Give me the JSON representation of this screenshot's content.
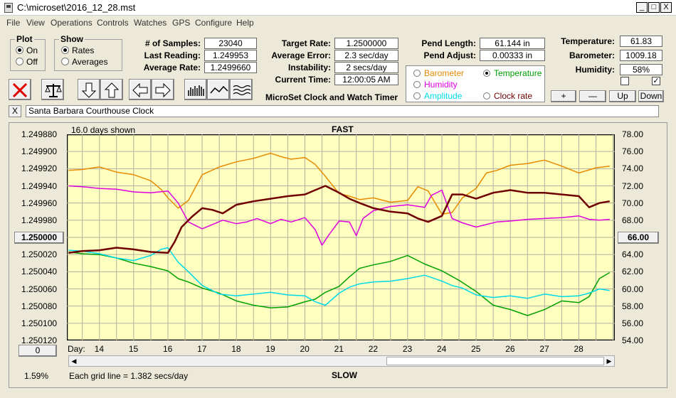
{
  "window": {
    "title": "C:\\microset\\2016_12_28.mst",
    "min": "_",
    "max": "□",
    "close": "X"
  },
  "menu": [
    "File",
    "View",
    "Operations",
    "Controls",
    "Watches",
    "GPS",
    "Configure",
    "Help"
  ],
  "plot": {
    "label": "Plot",
    "on": "On",
    "off": "Off"
  },
  "show": {
    "label": "Show",
    "rates": "Rates",
    "averages": "Averages"
  },
  "stats": {
    "samples_label": "# of Samples:",
    "samples": "23040",
    "last_label": "Last Reading:",
    "last": "1.249953",
    "avg_label": "Average Rate:",
    "avg": "1.2499660"
  },
  "timer": {
    "target_label": "Target Rate:",
    "target": "1.2500000",
    "error_label": "Average Error:",
    "error": "2.3 sec/day",
    "instab_label": "Instability:",
    "instab": "2 secs/day",
    "time_label": "Current Time:",
    "time": "12:00:05 AM",
    "brand": "MicroSet Clock and Watch Timer"
  },
  "pend": {
    "length_label": "Pend Length:",
    "length": "61.144 in",
    "adjust_label": "Pend Adjust:",
    "adjust": "0.00333 in"
  },
  "env": {
    "temp_label": "Temperature:",
    "temp": "61.83",
    "baro_label": "Barometer:",
    "baro": "1009.18",
    "hum_label": "Humidity:",
    "hum": "58%",
    "check2": "✓"
  },
  "env_buttons": {
    "plus": "+",
    "minus": "—",
    "up": "Up",
    "down": "Down"
  },
  "aux": {
    "barometer": "Barometer",
    "temperature": "Temperature",
    "humidity": "Humidity",
    "amplitude": "Amplitude",
    "clock_rate": "Clock rate"
  },
  "colors": {
    "barometer": "#e88a00",
    "temperature": "#00a000",
    "humidity": "#e000e0",
    "amplitude": "#00d8e8",
    "rate": "#700000",
    "plot_bg": "#ffffc0"
  },
  "clock_name": "Santa Barbara Courthouse Clock",
  "close_x": "X",
  "chart": {
    "days_shown": "16.0 days shown",
    "fast": "FAST",
    "slow": "SLOW",
    "day_label": "Day:",
    "grid_note": "Each grid line = 1.382 secs/day",
    "percent": "1.59%",
    "left_button": "1.250000",
    "right_button": "66.00",
    "zero_button": "0"
  },
  "chart_data": {
    "type": "line",
    "x_label": "Day:",
    "x_ticks": [
      14,
      15,
      16,
      17,
      18,
      19,
      20,
      21,
      22,
      23,
      24,
      25,
      26,
      27,
      28
    ],
    "xlim": [
      13.05,
      29.05
    ],
    "left_axis": {
      "ticks": [
        "1.249880",
        "1.249900",
        "1.249920",
        "1.249940",
        "1.249960",
        "1.249980",
        "1.250000",
        "1.250020",
        "1.250040",
        "1.250060",
        "1.250080",
        "1.250100",
        "1.250120"
      ],
      "range": [
        1.24988,
        1.25012
      ],
      "inverted": true
    },
    "right_axis": {
      "ticks": [
        "78.00",
        "76.00",
        "74.00",
        "72.00",
        "70.00",
        "68.00",
        "66.00",
        "64.00",
        "62.00",
        "60.00",
        "58.00",
        "56.00",
        "54.00"
      ],
      "range": [
        54,
        78
      ]
    },
    "series": [
      {
        "key": "barometer",
        "axis": "right",
        "x": [
          13.1,
          13.5,
          14,
          14.5,
          15,
          15.5,
          15.8,
          16,
          16.3,
          16.6,
          17,
          17.5,
          18,
          18.5,
          19,
          19.3,
          19.6,
          20,
          20.3,
          20.6,
          21,
          21.3,
          21.6,
          22,
          22.5,
          23,
          23.3,
          23.6,
          24,
          24.3,
          24.6,
          25,
          25.3,
          25.6,
          26,
          26.5,
          27,
          27.5,
          28,
          28.5,
          28.9
        ],
        "y": [
          73.8,
          73.9,
          74.2,
          73.6,
          73.3,
          72.6,
          71.6,
          70.6,
          69.4,
          70.3,
          73.3,
          74.2,
          74.8,
          75.2,
          75.8,
          75.4,
          75.1,
          75.3,
          74.5,
          73.1,
          71.1,
          70.8,
          70.4,
          70.6,
          70.1,
          70.3,
          71.9,
          71.4,
          68.7,
          68.9,
          70.6,
          71.7,
          73.5,
          73.8,
          74.4,
          74.6,
          75.0,
          74.3,
          73.5,
          74.1,
          74.3
        ]
      },
      {
        "key": "humidity",
        "axis": "right",
        "x": [
          13.1,
          13.5,
          14,
          14.5,
          15,
          15.5,
          16,
          16.3,
          16.6,
          17,
          17.3,
          17.6,
          18,
          18.3,
          18.6,
          19,
          19.3,
          19.6,
          20,
          20.3,
          20.5,
          20.7,
          21,
          21.3,
          21.5,
          21.7,
          22,
          22.5,
          23,
          23.5,
          23.7,
          24,
          24.3,
          24.6,
          25,
          25.3,
          25.6,
          26,
          26.5,
          27,
          27.5,
          28,
          28.3,
          28.6,
          28.9
        ],
        "y": [
          72.0,
          71.9,
          71.7,
          71.6,
          71.3,
          71.2,
          71.4,
          70.0,
          67.8,
          67.0,
          67.5,
          68.0,
          67.6,
          67.8,
          68.2,
          67.6,
          68.1,
          67.8,
          68.3,
          66.9,
          65.1,
          66.3,
          67.9,
          67.8,
          66.2,
          68.2,
          69.1,
          69.6,
          69.8,
          69.5,
          70.9,
          71.5,
          68.2,
          67.7,
          67.2,
          67.5,
          67.8,
          67.9,
          68.1,
          68.2,
          68.3,
          68.5,
          68.1,
          68.0,
          68.1
        ]
      },
      {
        "key": "temperature",
        "axis": "right",
        "x": [
          13.1,
          13.5,
          14,
          14.5,
          15,
          15.5,
          16,
          16.3,
          16.6,
          17,
          17.5,
          18,
          18.5,
          19,
          19.5,
          20,
          20.3,
          20.6,
          21,
          21.3,
          21.6,
          22,
          22.5,
          23,
          23.5,
          24,
          24.5,
          25,
          25.5,
          26,
          26.5,
          27,
          27.5,
          28,
          28.3,
          28.6,
          28.9
        ],
        "y": [
          64.3,
          64.1,
          64.0,
          63.6,
          63.0,
          62.6,
          62.1,
          61.2,
          60.8,
          60.1,
          59.5,
          58.6,
          58.1,
          57.8,
          57.9,
          58.5,
          58.8,
          59.6,
          60.3,
          61.4,
          62.4,
          62.8,
          63.2,
          63.9,
          62.9,
          62.1,
          61.0,
          59.7,
          58.1,
          57.6,
          56.9,
          57.6,
          58.6,
          58.4,
          59.1,
          61.2,
          61.9
        ]
      },
      {
        "key": "amplitude",
        "axis": "right",
        "x": [
          13.1,
          13.5,
          14,
          14.5,
          15,
          15.5,
          15.8,
          16,
          16.3,
          16.6,
          17,
          17.5,
          18,
          18.5,
          19,
          19.5,
          20,
          20.3,
          20.6,
          21,
          21.3,
          21.6,
          22,
          22.5,
          23,
          23.5,
          24,
          24.3,
          24.6,
          25,
          25.5,
          26,
          26.5,
          27,
          27.5,
          28,
          28.3,
          28.6,
          28.9
        ],
        "y": [
          64.5,
          64.4,
          64.1,
          63.6,
          63.3,
          63.9,
          64.6,
          64.8,
          63.1,
          62.0,
          60.4,
          59.4,
          59.2,
          59.4,
          59.6,
          59.3,
          59.2,
          58.5,
          58.1,
          59.5,
          60.2,
          60.6,
          60.8,
          60.9,
          61.2,
          61.6,
          60.9,
          60.4,
          60.1,
          59.3,
          59.0,
          59.2,
          58.9,
          59.4,
          59.1,
          59.2,
          59.5,
          60.0,
          59.8
        ]
      },
      {
        "key": "rate",
        "axis": "left",
        "x": [
          13.1,
          13.5,
          14,
          14.5,
          15,
          15.5,
          16,
          16.2,
          16.4,
          16.7,
          17,
          17.3,
          17.6,
          18,
          18.5,
          19,
          19.5,
          20,
          20.3,
          20.6,
          21,
          21.3,
          21.6,
          22,
          22.5,
          23,
          23.3,
          23.6,
          24,
          24.3,
          24.6,
          25,
          25.5,
          26,
          26.5,
          27,
          27.5,
          28,
          28.3,
          28.6,
          28.9
        ],
        "y": [
          1.250018,
          1.250016,
          1.250015,
          1.250012,
          1.250014,
          1.250017,
          1.250018,
          1.250005,
          1.249988,
          1.249976,
          1.249966,
          1.249968,
          1.249972,
          1.249962,
          1.249958,
          1.249955,
          1.249952,
          1.24995,
          1.249945,
          1.24994,
          1.249948,
          1.249955,
          1.24996,
          1.249966,
          1.24997,
          1.249972,
          1.249978,
          1.249982,
          1.249975,
          1.24995,
          1.24995,
          1.249955,
          1.249948,
          1.249945,
          1.249948,
          1.249948,
          1.24995,
          1.249952,
          1.249965,
          1.24996,
          1.249958
        ]
      }
    ]
  }
}
